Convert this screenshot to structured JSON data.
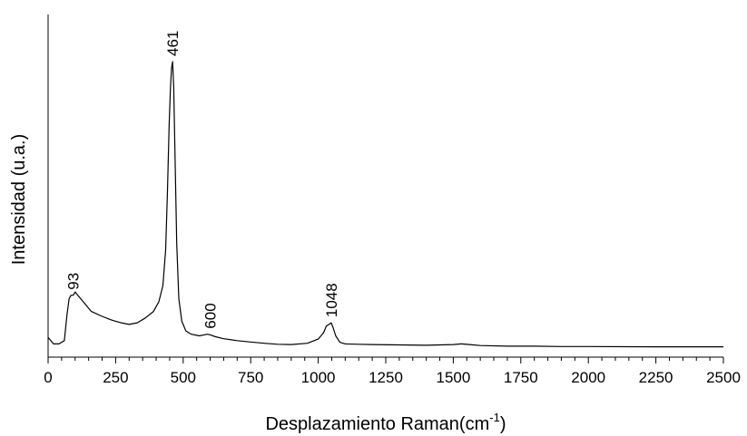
{
  "chart_data": {
    "type": "line",
    "xlabel": "Desplazamiento Raman",
    "xlabel_unit_base": "cm",
    "xlabel_unit_exponent": "-1",
    "ylabel": "Intensidad (u.a.)",
    "xlim": [
      0,
      2500
    ],
    "ylim": [
      0,
      100
    ],
    "x_ticks": [
      "0",
      "250",
      "500",
      "750",
      "1000",
      "1250",
      "1500",
      "1750",
      "2000",
      "2250",
      "2500"
    ],
    "y_ticks_shown": false,
    "grid": false,
    "legend": "none",
    "series": [
      {
        "x": [
          0,
          20,
          40,
          60,
          70,
          78,
          85,
          93,
          100,
          110,
          130,
          160,
          200,
          230,
          250,
          270,
          300,
          330,
          360,
          390,
          410,
          425,
          435,
          442,
          448,
          453,
          457,
          461,
          465,
          470,
          476,
          484,
          495,
          510,
          530,
          560,
          590,
          600,
          620,
          650,
          700,
          750,
          800,
          850,
          900,
          960,
          1000,
          1020,
          1030,
          1040,
          1048,
          1055,
          1065,
          1080,
          1100,
          1150,
          1200,
          1300,
          1400,
          1500,
          1530,
          1560,
          1600,
          1700,
          1800,
          1900,
          2000,
          2250,
          2500
        ],
        "y": [
          3,
          1,
          1,
          2,
          10,
          15,
          16,
          16,
          17,
          16,
          14,
          11,
          9.5,
          8.5,
          8,
          7.5,
          7,
          7.5,
          9,
          11,
          14,
          19,
          30,
          48,
          68,
          80,
          86,
          88,
          80,
          58,
          32,
          15,
          8,
          5,
          4,
          3.5,
          4,
          3.8,
          3.2,
          2.6,
          2.0,
          1.6,
          1.2,
          0.9,
          0.8,
          1.2,
          2.5,
          4.5,
          6.5,
          7,
          7.5,
          6,
          3.5,
          1.5,
          1,
          0.9,
          0.8,
          0.7,
          0.6,
          0.8,
          1.0,
          0.8,
          0.5,
          0.3,
          0.3,
          0.2,
          0.2,
          0.1,
          0.1
        ]
      }
    ],
    "annotations": [
      {
        "x": 93,
        "y": 16,
        "text": "93"
      },
      {
        "x": 461,
        "y": 88,
        "text": "461"
      },
      {
        "x": 600,
        "y": 4,
        "text": "600"
      },
      {
        "x": 1048,
        "y": 7.5,
        "text": "1048"
      }
    ]
  }
}
